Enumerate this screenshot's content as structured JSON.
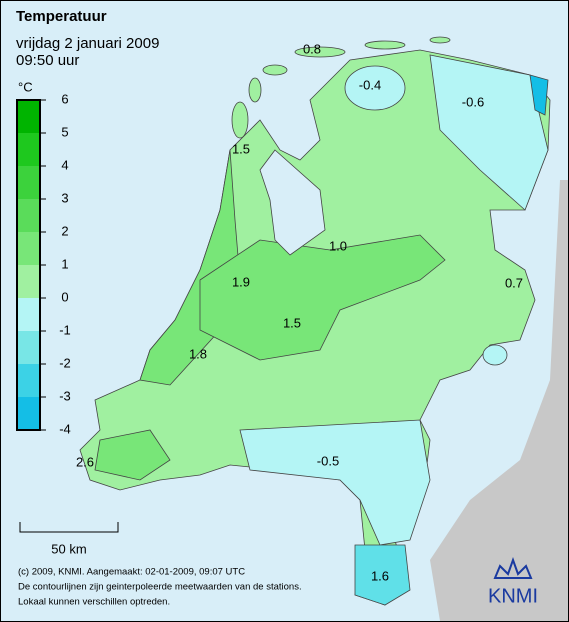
{
  "header": {
    "title": "Temperatuur",
    "date": "vrijdag 2 januari 2009",
    "time": "09:50 uur"
  },
  "legend": {
    "unit": "°C",
    "ticks": [
      6,
      5,
      4,
      3,
      2,
      1,
      0,
      -1,
      -2,
      -3,
      -4
    ],
    "colors": [
      "#00b400",
      "#1ec81e",
      "#3cd23c",
      "#5adc5a",
      "#78e678",
      "#a0f0a0",
      "#b4f5f5",
      "#78e6e6",
      "#3cd2e6",
      "#14bee6"
    ]
  },
  "contours": [
    "0.8",
    "-0.4",
    "-0.6",
    "1.5",
    "1.0",
    "0.7",
    "1.9",
    "1.5",
    "1.8",
    "2.6",
    "-0.5",
    "1.6"
  ],
  "scale": "50 km",
  "footer": [
    "(c) 2009, KNMI. Aangemaakt: 02-01-2009, 09:07 UTC",
    "De contourlijnen zijn geinterpoleerde meetwaarden van de stations.",
    "Lokaal kunnen verschillen optreden."
  ],
  "logo": "KNMI"
}
